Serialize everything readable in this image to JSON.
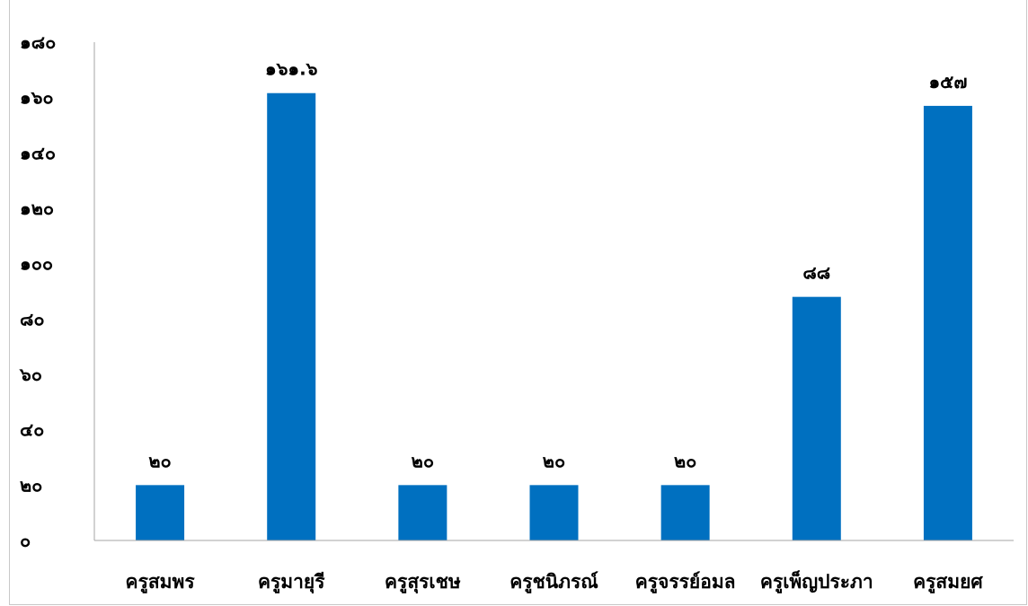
{
  "chart_data": {
    "type": "bar",
    "categories": [
      "ครูสมพร",
      "ครูมายุรี",
      "ครูสุรเชษ",
      "ครูชนิภรณ์",
      "ครูจรรย์อมล",
      "ครูเพ็ญประภา",
      "ครูสมยศ"
    ],
    "values": [
      20,
      161.6,
      20,
      20,
      20,
      88,
      157
    ],
    "data_labels": [
      "๒๐",
      "๑๖๑.๖",
      "๒๐",
      "๒๐",
      "๒๐",
      "๘๘",
      "๑๕๗"
    ],
    "y_ticks": [
      0,
      20,
      40,
      60,
      80,
      100,
      120,
      140,
      160,
      180
    ],
    "y_tick_labels": [
      "๐",
      "๒๐",
      "๔๐",
      "๖๐",
      "๘๐",
      "๑๐๐",
      "๑๒๐",
      "๑๔๐",
      "๑๖๐",
      "๑๘๐"
    ],
    "ylim": [
      0,
      180
    ],
    "title": "",
    "xlabel": "",
    "ylabel": "",
    "grid": false,
    "bar_color": "#0070C0"
  }
}
